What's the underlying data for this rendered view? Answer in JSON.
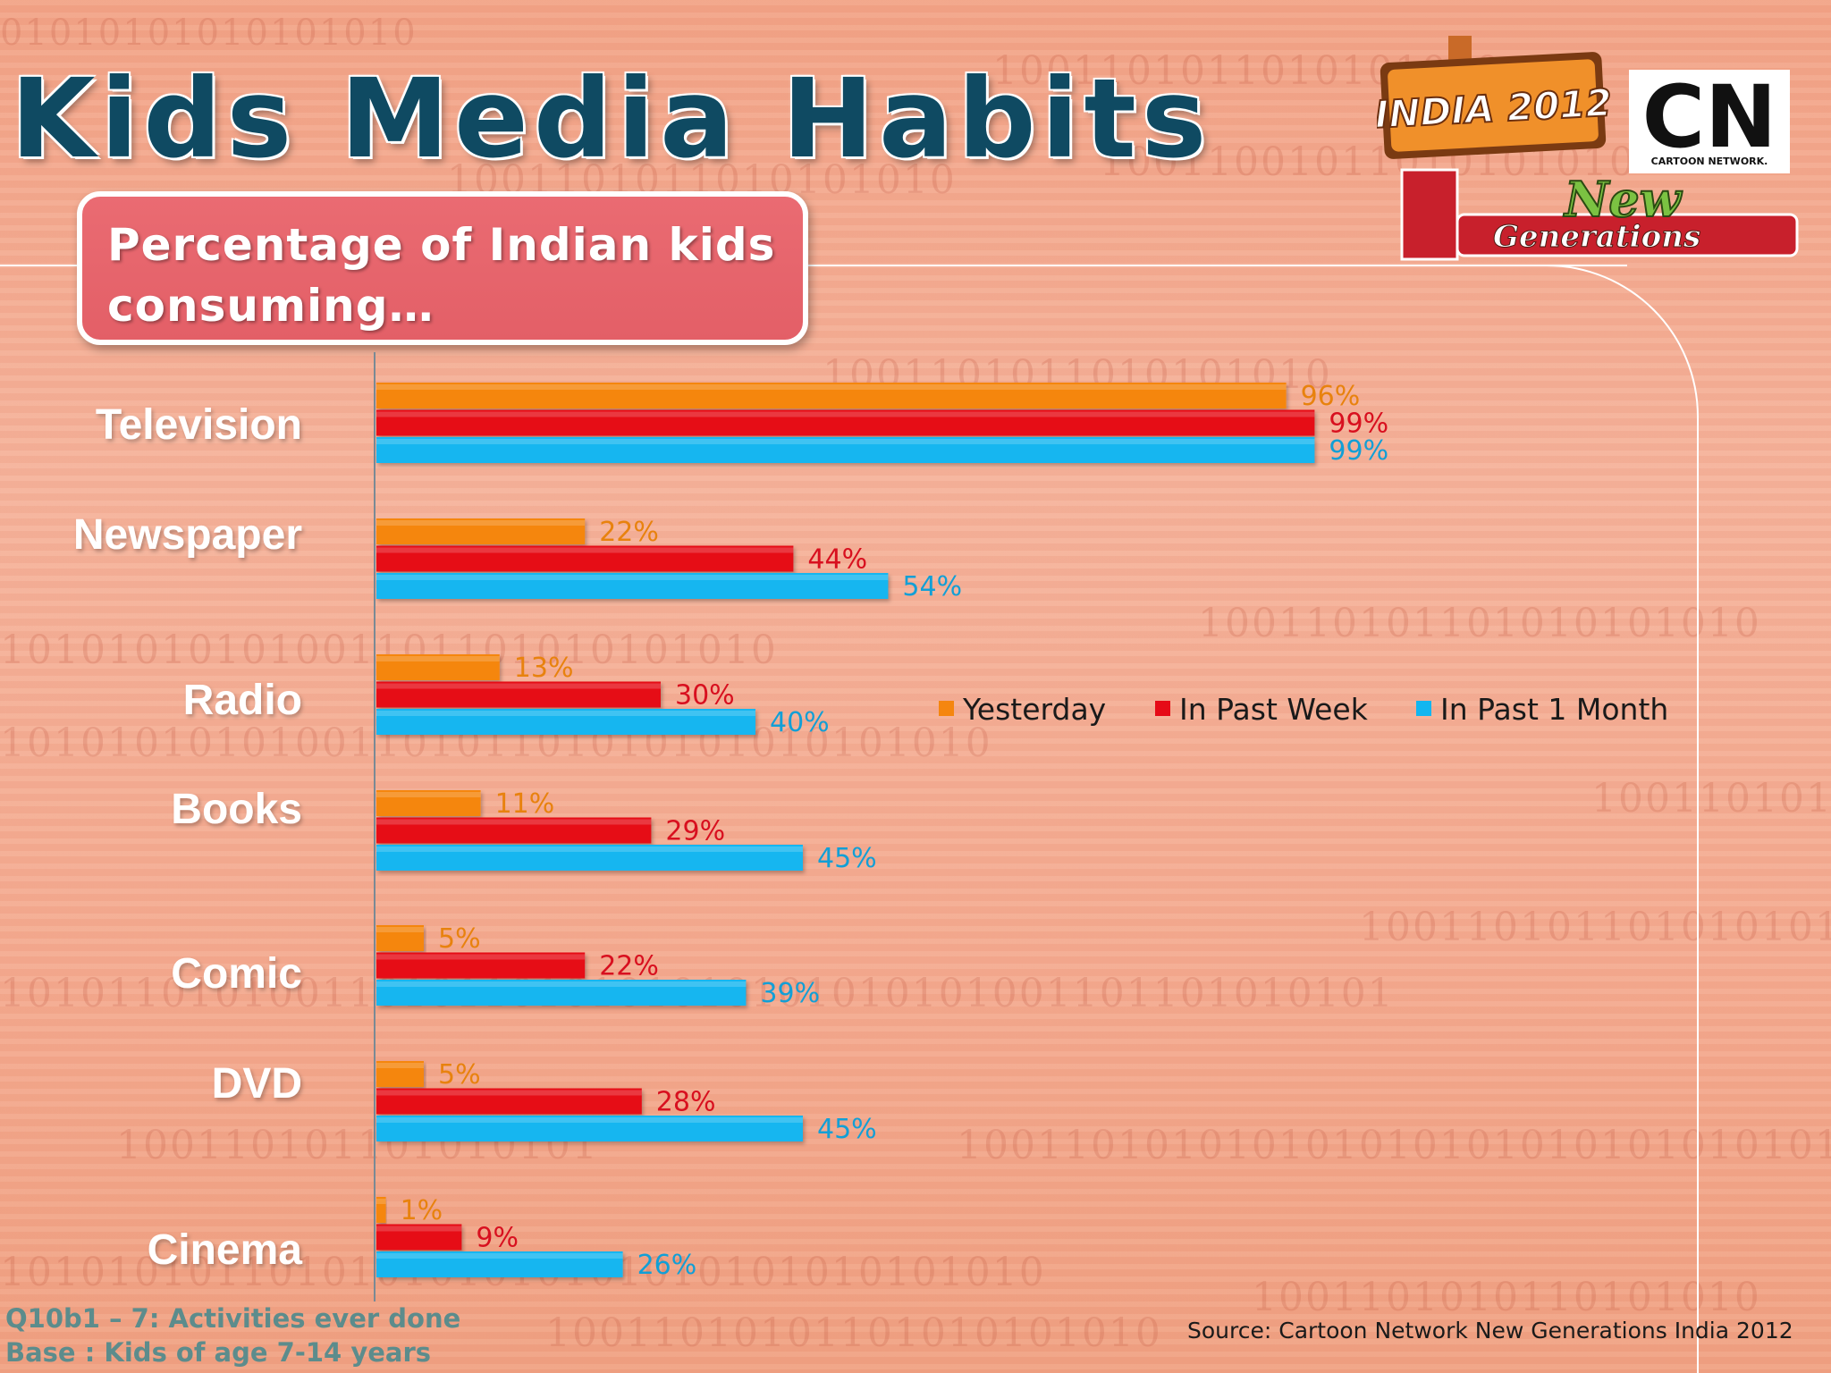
{
  "slide": {
    "title": "Kids Media Habits",
    "subtitle_line1": "Percentage of Indian kids",
    "subtitle_line2": "consuming…",
    "footnote_line1": "Q10b1 – 7: Activities ever done",
    "footnote_line2": "Base : Kids of age 7-14 years",
    "source": "Source: Cartoon Network New Generations India 2012"
  },
  "logo": {
    "badge_text": "INDIA 2012",
    "brand_text": "CN",
    "brand_subtext": "CARTOON NETWORK.",
    "tagline_line1": "New",
    "tagline_line2": "Generations"
  },
  "chart_data": {
    "type": "bar",
    "orientation": "horizontal",
    "categories": [
      "Television",
      "Newspaper",
      "Radio",
      "Books",
      "Comic",
      "DVD",
      "Cinema"
    ],
    "series": [
      {
        "name": "Yesterday",
        "color": "#f5860f",
        "label_color": "#e8820e",
        "values": [
          96,
          22,
          13,
          11,
          5,
          5,
          1
        ]
      },
      {
        "name": "In Past Week",
        "color": "#e60b17",
        "label_color": "#d8101f",
        "values": [
          99,
          44,
          30,
          29,
          22,
          28,
          9
        ]
      },
      {
        "name": "In Past 1 Month",
        "color": "#12b6f0",
        "label_color": "#129fd6",
        "values": [
          99,
          54,
          40,
          45,
          39,
          45,
          26
        ]
      }
    ],
    "value_suffix": "%",
    "xlim": [
      0,
      100
    ],
    "legend_position": "right-middle",
    "grid": false
  }
}
